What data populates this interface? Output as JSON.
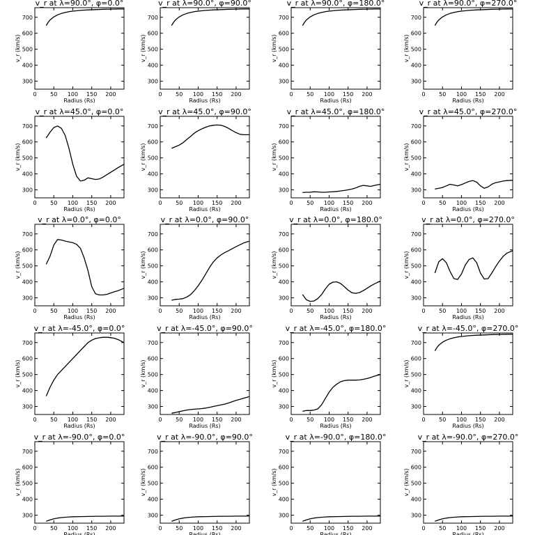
{
  "chart_data": {
    "type": "line",
    "layout": "5 rows x 4 columns",
    "xlabel": "Radius (Rs)",
    "ylabel": "v_r (km/s)",
    "xlim": [
      0,
      235
    ],
    "ylim": [
      250,
      760
    ],
    "xticks": [
      0,
      50,
      100,
      150,
      200
    ],
    "yticks": [
      300,
      400,
      500,
      600,
      700
    ],
    "grid": false,
    "panels": [
      {
        "title": "v_r at λ=90.0°, φ=0.0°",
        "x": [
          30,
          35,
          40,
          50,
          60,
          70,
          80,
          90,
          100,
          120,
          140,
          160,
          180,
          200,
          220,
          235
        ],
        "y": [
          648,
          668,
          683,
          702,
          715,
          724,
          730,
          735,
          738,
          743,
          746,
          748,
          750,
          751,
          752,
          752
        ]
      },
      {
        "title": "v_r at λ=90.0°, φ=90.0°",
        "x": [
          30,
          35,
          40,
          50,
          60,
          70,
          80,
          90,
          100,
          120,
          140,
          160,
          180,
          200,
          220,
          235
        ],
        "y": [
          648,
          668,
          683,
          702,
          715,
          724,
          730,
          735,
          738,
          743,
          746,
          748,
          750,
          751,
          752,
          752
        ]
      },
      {
        "title": "v_r at λ=90.0°, φ=180.0°",
        "x": [
          30,
          35,
          40,
          50,
          60,
          70,
          80,
          90,
          100,
          120,
          140,
          160,
          180,
          200,
          220,
          235
        ],
        "y": [
          648,
          668,
          683,
          702,
          715,
          724,
          730,
          735,
          738,
          743,
          746,
          748,
          750,
          751,
          752,
          752
        ]
      },
      {
        "title": "v_r at λ=90.0°, φ=270.0°",
        "x": [
          30,
          35,
          40,
          50,
          60,
          70,
          80,
          90,
          100,
          120,
          140,
          160,
          180,
          200,
          220,
          235
        ],
        "y": [
          648,
          668,
          683,
          702,
          715,
          724,
          730,
          735,
          738,
          743,
          746,
          748,
          750,
          751,
          752,
          752
        ]
      },
      {
        "title": "v_r at λ=45.0°, φ=0.0°",
        "x": [
          30,
          40,
          50,
          60,
          70,
          80,
          90,
          100,
          110,
          120,
          130,
          140,
          150,
          160,
          170,
          180,
          190,
          200,
          210,
          220,
          235
        ],
        "y": [
          625,
          660,
          690,
          700,
          685,
          640,
          560,
          460,
          385,
          355,
          360,
          375,
          370,
          365,
          368,
          380,
          395,
          410,
          425,
          440,
          460
        ]
      },
      {
        "title": "v_r at λ=45.0°, φ=90.0°",
        "x": [
          30,
          40,
          50,
          60,
          70,
          80,
          90,
          100,
          110,
          120,
          130,
          140,
          150,
          160,
          170,
          180,
          190,
          200,
          210,
          220,
          235
        ],
        "y": [
          560,
          570,
          580,
          595,
          615,
          635,
          655,
          670,
          682,
          692,
          700,
          704,
          706,
          704,
          697,
          685,
          670,
          658,
          648,
          645,
          645
        ]
      },
      {
        "title": "v_r at λ=45.0°, φ=180.0°",
        "x": [
          30,
          40,
          50,
          60,
          70,
          80,
          90,
          100,
          110,
          120,
          130,
          140,
          150,
          160,
          170,
          180,
          190,
          200,
          210,
          220,
          235
        ],
        "y": [
          283,
          285,
          285,
          288,
          287,
          285,
          285,
          287,
          288,
          290,
          293,
          296,
          300,
          305,
          312,
          322,
          328,
          325,
          322,
          328,
          335
        ]
      },
      {
        "title": "v_r at λ=45.0°, φ=270.0°",
        "x": [
          30,
          40,
          50,
          60,
          70,
          80,
          90,
          100,
          110,
          120,
          130,
          140,
          150,
          160,
          170,
          180,
          190,
          200,
          210,
          220,
          235
        ],
        "y": [
          305,
          310,
          315,
          325,
          335,
          330,
          325,
          333,
          343,
          353,
          358,
          348,
          325,
          310,
          318,
          335,
          345,
          350,
          355,
          358,
          360
        ]
      },
      {
        "title": "v_r at λ=0.0°, φ=0.0°",
        "x": [
          30,
          40,
          50,
          60,
          70,
          80,
          90,
          100,
          110,
          120,
          130,
          140,
          150,
          160,
          170,
          180,
          190,
          200,
          210,
          220,
          235
        ],
        "y": [
          510,
          560,
          630,
          665,
          662,
          655,
          650,
          645,
          635,
          610,
          550,
          470,
          370,
          325,
          318,
          318,
          322,
          330,
          338,
          345,
          360
        ]
      },
      {
        "title": "v_r at λ=0.0°, φ=90.0°",
        "x": [
          30,
          40,
          50,
          60,
          70,
          80,
          90,
          100,
          110,
          120,
          130,
          140,
          150,
          160,
          170,
          180,
          190,
          200,
          210,
          220,
          235
        ],
        "y": [
          285,
          290,
          292,
          295,
          305,
          320,
          345,
          375,
          410,
          450,
          490,
          525,
          550,
          568,
          583,
          595,
          608,
          620,
          632,
          643,
          655
        ]
      },
      {
        "title": "v_r at λ=0.0°, φ=180.0°",
        "x": [
          30,
          40,
          50,
          60,
          70,
          80,
          90,
          100,
          110,
          120,
          130,
          140,
          150,
          160,
          170,
          180,
          190,
          200,
          210,
          220,
          235
        ],
        "y": [
          320,
          288,
          278,
          280,
          295,
          320,
          355,
          385,
          398,
          400,
          390,
          370,
          348,
          332,
          328,
          333,
          345,
          360,
          375,
          388,
          405
        ]
      },
      {
        "title": "v_r at λ=0.0°, φ=270.0°",
        "x": [
          30,
          40,
          50,
          60,
          70,
          80,
          90,
          100,
          110,
          120,
          130,
          140,
          150,
          160,
          170,
          180,
          190,
          200,
          210,
          220,
          235
        ],
        "y": [
          455,
          525,
          545,
          520,
          465,
          420,
          415,
          450,
          505,
          540,
          550,
          520,
          455,
          418,
          420,
          455,
          495,
          530,
          560,
          580,
          595
        ]
      },
      {
        "title": "v_r at λ=-45.0°, φ=0.0°",
        "x": [
          30,
          40,
          50,
          60,
          70,
          80,
          90,
          100,
          110,
          120,
          130,
          140,
          150,
          160,
          170,
          180,
          190,
          200,
          210,
          220,
          235
        ],
        "y": [
          365,
          420,
          465,
          500,
          525,
          550,
          575,
          600,
          625,
          650,
          675,
          700,
          715,
          725,
          730,
          733,
          733,
          731,
          727,
          718,
          700
        ]
      },
      {
        "title": "v_r at λ=-45.0°, φ=90.0°",
        "x": [
          30,
          40,
          50,
          60,
          70,
          80,
          90,
          100,
          110,
          120,
          130,
          140,
          150,
          160,
          170,
          180,
          190,
          200,
          210,
          220,
          235
        ],
        "y": [
          258,
          262,
          268,
          273,
          278,
          281,
          283,
          285,
          287,
          290,
          295,
          300,
          305,
          310,
          315,
          322,
          330,
          338,
          345,
          352,
          362
        ]
      },
      {
        "title": "v_r at λ=-45.0°, φ=180.0°",
        "x": [
          30,
          40,
          50,
          60,
          70,
          80,
          90,
          100,
          110,
          120,
          130,
          140,
          150,
          160,
          170,
          180,
          190,
          200,
          210,
          220,
          235
        ],
        "y": [
          270,
          275,
          275,
          278,
          285,
          310,
          350,
          390,
          420,
          440,
          455,
          462,
          465,
          465,
          465,
          466,
          470,
          475,
          482,
          490,
          500
        ]
      },
      {
        "title": "v_r at λ=-45.0°, φ=270.0°",
        "x": [
          30,
          35,
          40,
          50,
          60,
          70,
          80,
          90,
          100,
          120,
          140,
          160,
          180,
          200,
          220,
          235
        ],
        "y": [
          648,
          668,
          683,
          702,
          715,
          724,
          730,
          735,
          738,
          743,
          746,
          748,
          750,
          751,
          752,
          752
        ]
      },
      {
        "title": "v_r at λ=-90.0°, φ=0.0°",
        "x": [
          30,
          40,
          50,
          60,
          70,
          80,
          90,
          100,
          120,
          140,
          160,
          180,
          200,
          220,
          235
        ],
        "y": [
          262,
          270,
          277,
          282,
          285,
          287,
          289,
          290,
          291,
          292,
          293,
          293,
          294,
          294,
          294
        ]
      },
      {
        "title": "v_r at λ=-90.0°, φ=90.0°",
        "x": [
          30,
          40,
          50,
          60,
          70,
          80,
          90,
          100,
          120,
          140,
          160,
          180,
          200,
          220,
          235
        ],
        "y": [
          262,
          270,
          277,
          282,
          285,
          287,
          289,
          290,
          291,
          292,
          293,
          293,
          294,
          294,
          294
        ]
      },
      {
        "title": "v_r at λ=-90.0°, φ=180.0°",
        "x": [
          30,
          40,
          50,
          60,
          70,
          80,
          90,
          100,
          120,
          140,
          160,
          180,
          200,
          220,
          235
        ],
        "y": [
          262,
          270,
          277,
          282,
          285,
          287,
          289,
          290,
          291,
          292,
          293,
          293,
          294,
          294,
          294
        ]
      },
      {
        "title": "v_r at λ=-90.0°, φ=270.0°",
        "x": [
          30,
          40,
          50,
          60,
          70,
          80,
          90,
          100,
          120,
          140,
          160,
          180,
          200,
          220,
          235
        ],
        "y": [
          262,
          270,
          277,
          282,
          285,
          287,
          289,
          290,
          291,
          292,
          293,
          293,
          294,
          294,
          294
        ]
      }
    ]
  }
}
